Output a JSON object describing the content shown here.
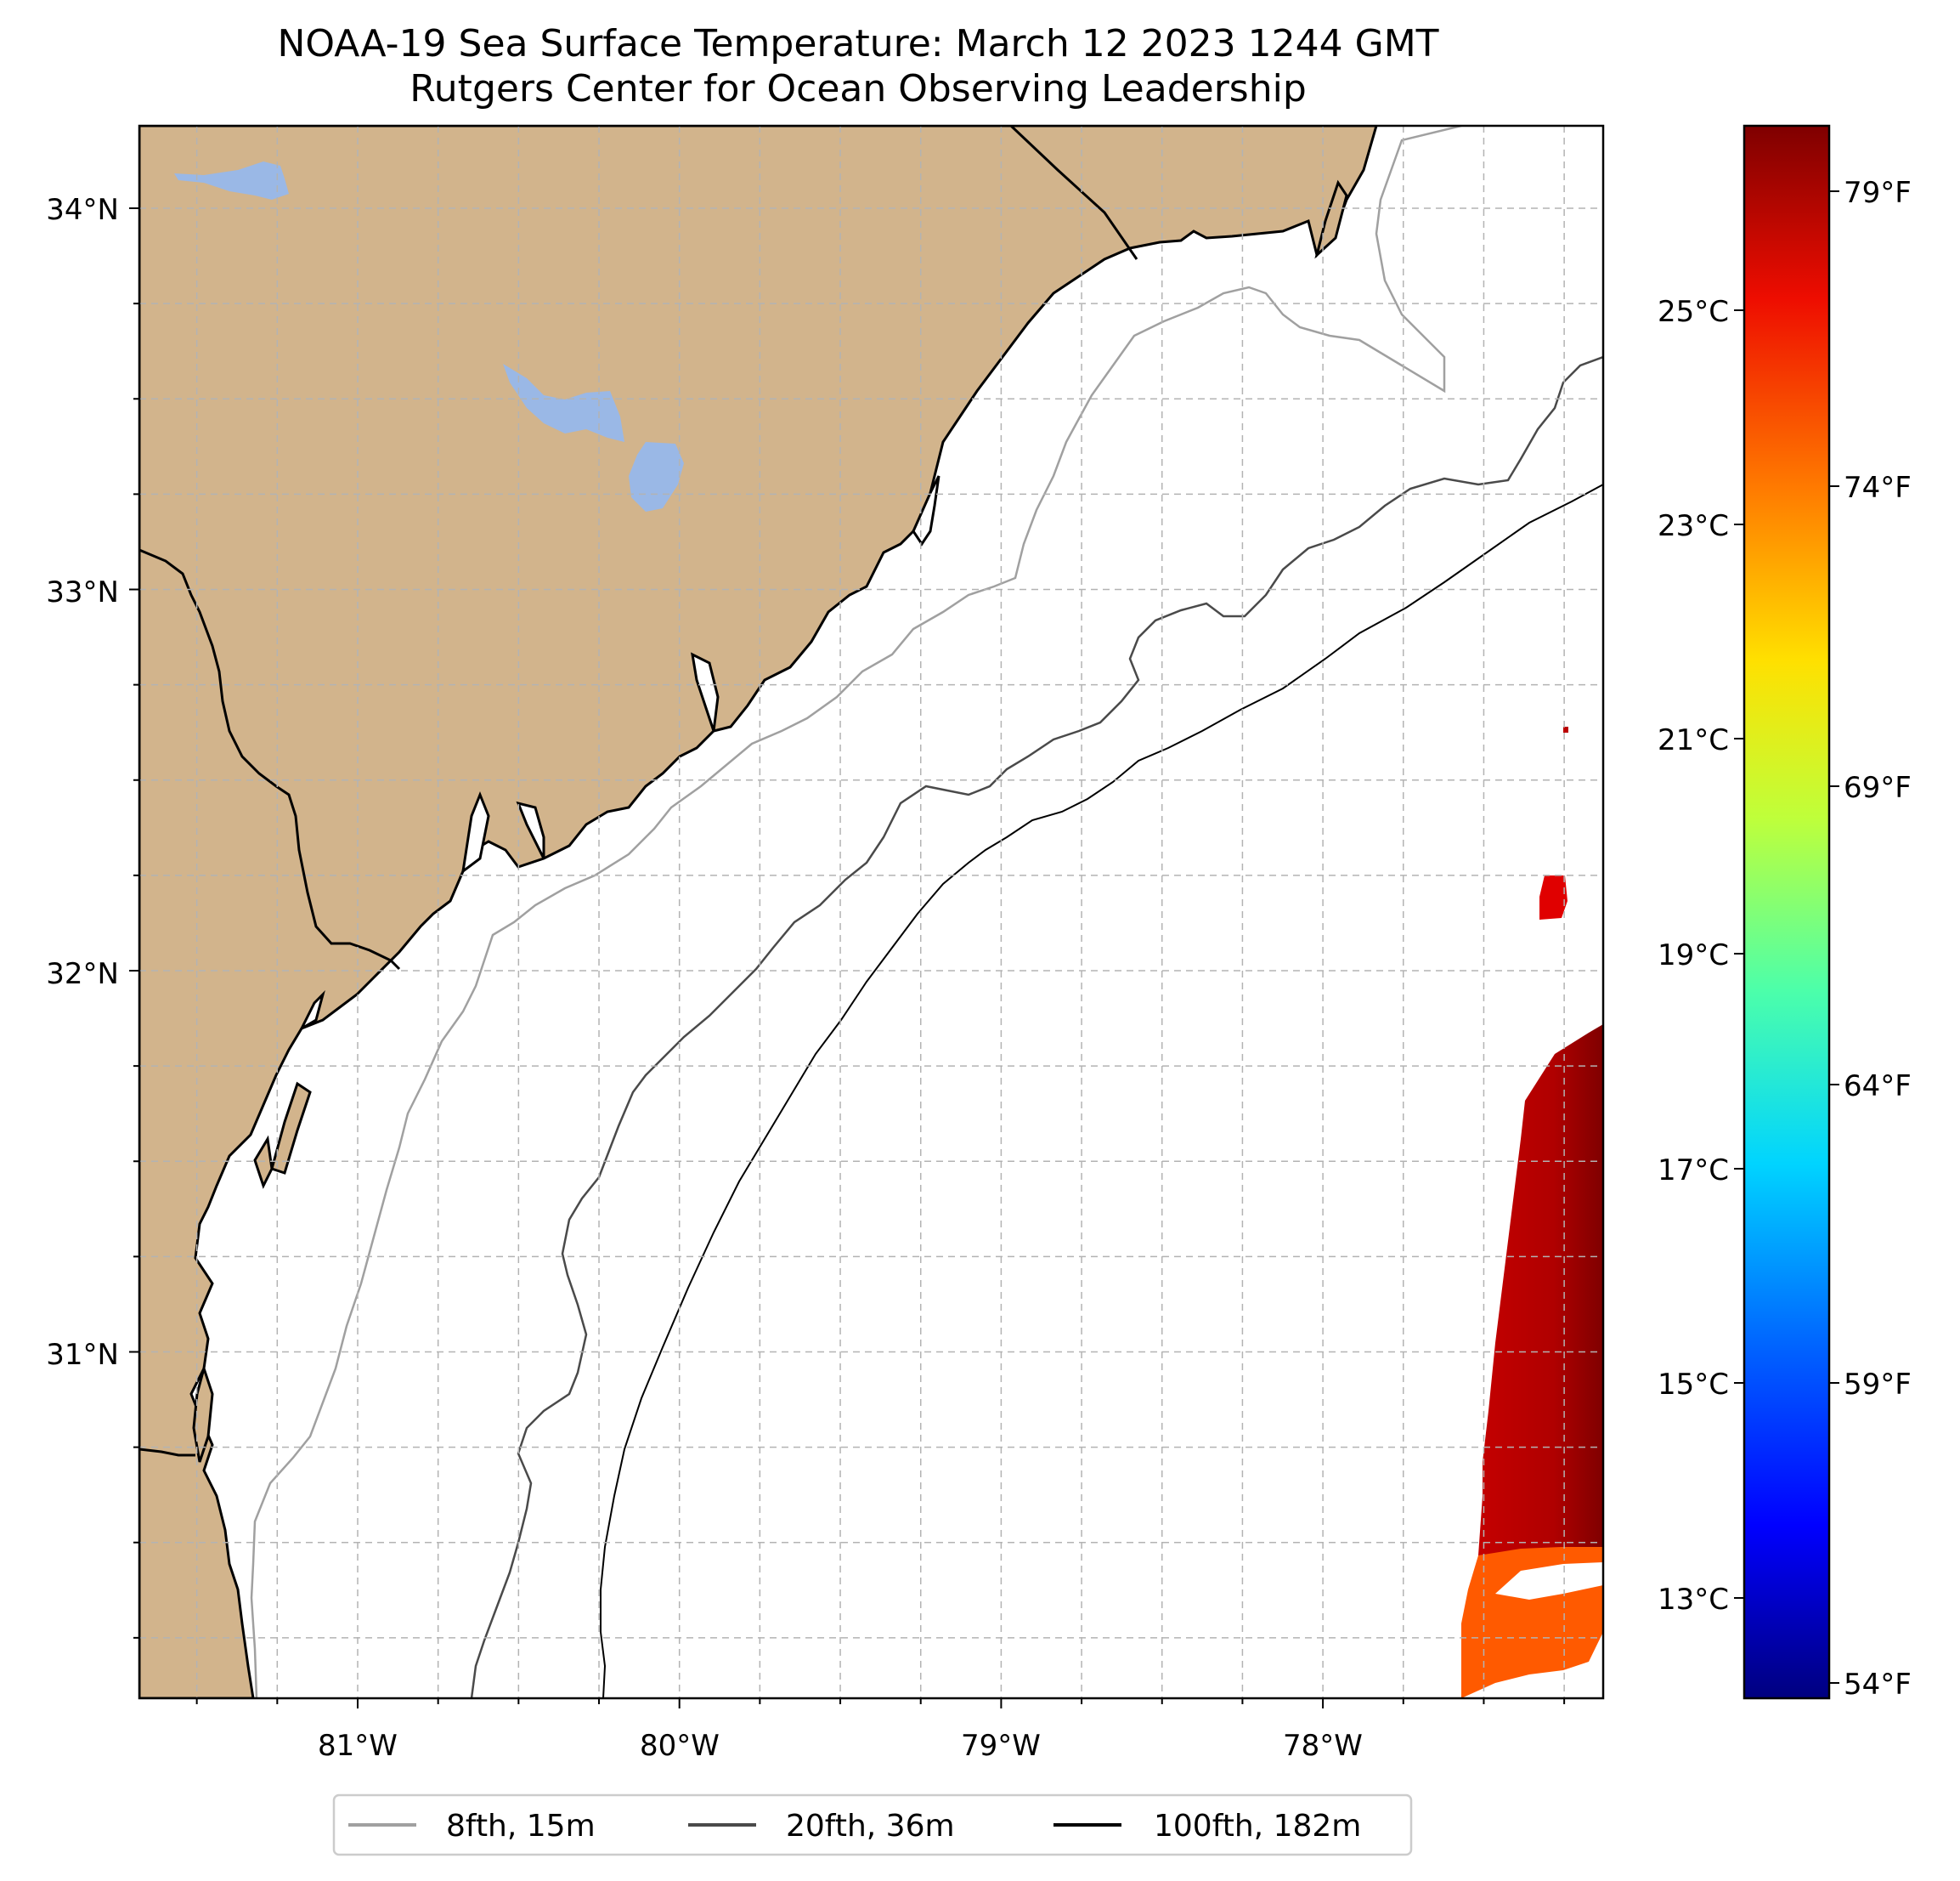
{
  "title": {
    "line1": "NOAA-19 Sea Surface Temperature: March 12 2023 1244 GMT",
    "line2": "Rutgers Center for Ocean Observing Leadership"
  },
  "axes": {
    "lat_labels": [
      "34°N",
      "33°N",
      "32°N",
      "31°N"
    ],
    "lon_labels": [
      "81°W",
      "80°W",
      "79°W",
      "78°W"
    ]
  },
  "colorbar": {
    "celsius_labels": [
      "25°C",
      "23°C",
      "21°C",
      "19°C",
      "17°C",
      "15°C",
      "13°C"
    ],
    "fahrenheit_labels": [
      "79°F",
      "74°F",
      "69°F",
      "64°F",
      "59°F",
      "54°F"
    ],
    "colormap": "jet"
  },
  "legend": {
    "items": [
      {
        "label": "8fth, 15m",
        "color": "#a0a0a0"
      },
      {
        "label": "20fth, 36m",
        "color": "#4a4a4a"
      },
      {
        "label": "100fth, 182m",
        "color": "#000000"
      }
    ]
  },
  "colors": {
    "land": "#d2b48c",
    "lakes": "#9ab8e6",
    "ocean": "#ffffff"
  }
}
